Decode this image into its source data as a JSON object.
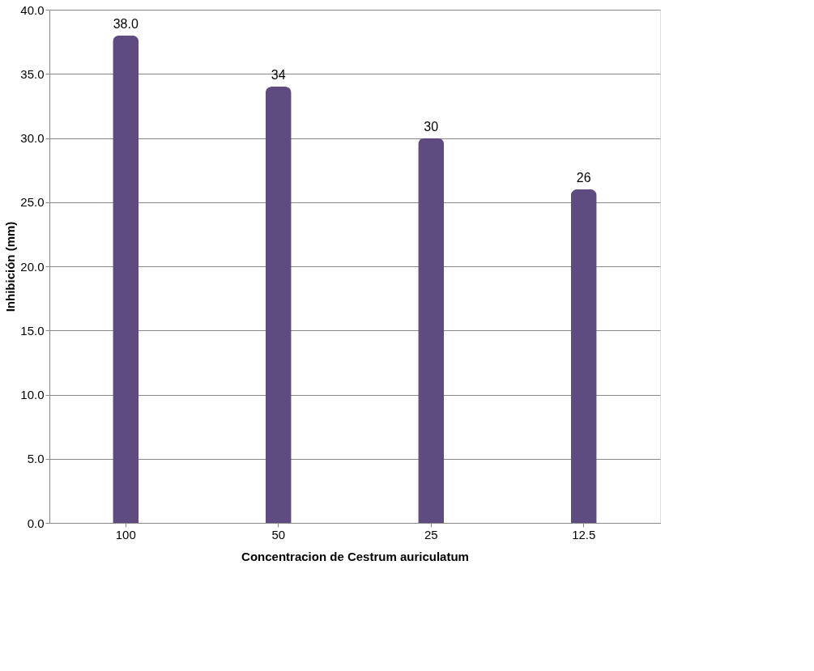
{
  "chart_data": {
    "type": "bar",
    "xlabel": "Concentracion de Cestrum auriculatum",
    "ylabel": "Inhibición (mm)",
    "categories": [
      "100",
      "50",
      "25",
      "12.5"
    ],
    "values": [
      38.0,
      34,
      30,
      26
    ],
    "value_labels": [
      "38.0",
      "34",
      "30",
      "26"
    ],
    "color": "#5e4b80",
    "ylim": [
      0,
      40
    ],
    "yticks": [
      {
        "value": 0,
        "label": "0.0"
      },
      {
        "value": 5,
        "label": "5.0"
      },
      {
        "value": 10,
        "label": "10.0"
      },
      {
        "value": 15,
        "label": "15.0"
      },
      {
        "value": 20,
        "label": "20.0"
      },
      {
        "value": 25,
        "label": "25.0"
      },
      {
        "value": 30,
        "label": "30.0"
      },
      {
        "value": 35,
        "label": "35.0"
      },
      {
        "value": 40,
        "label": "40.0"
      }
    ],
    "grid": "y"
  }
}
